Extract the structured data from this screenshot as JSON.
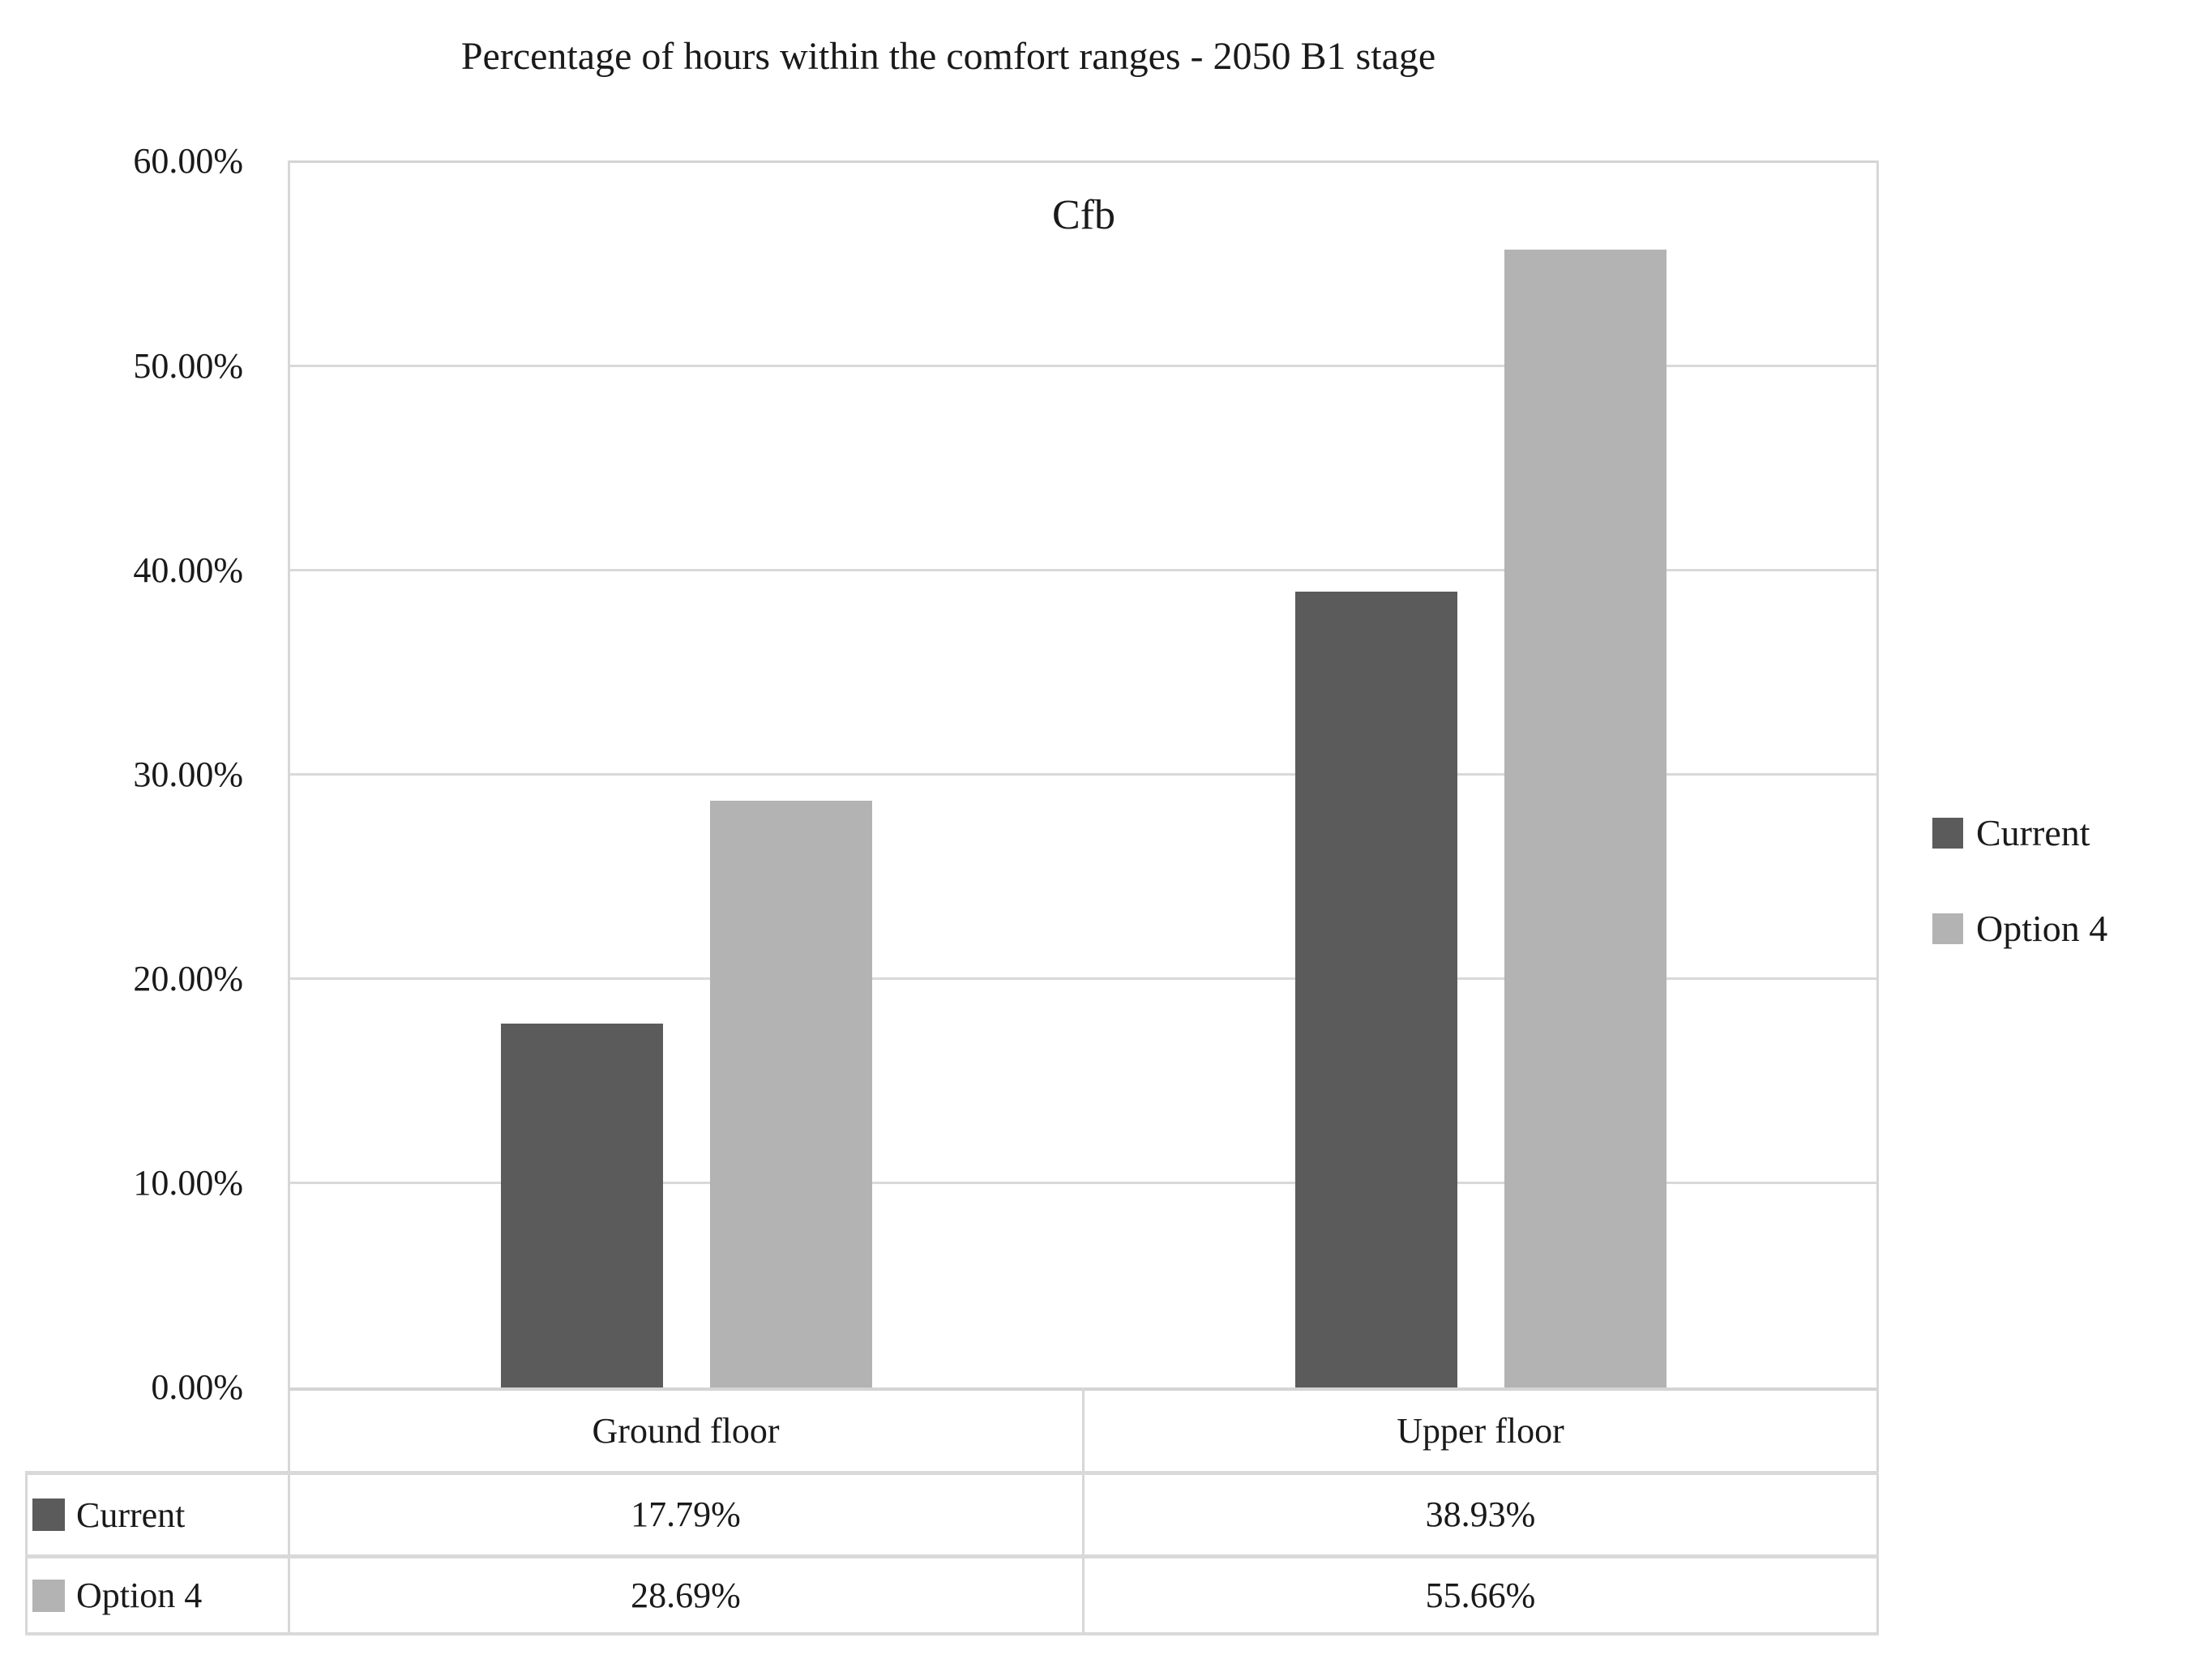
{
  "chart_data": {
    "type": "bar",
    "title": "Percentage of hours within the comfort ranges - 2050 B1 stage",
    "subtitle": "Cfb",
    "categories": [
      "Ground floor",
      "Upper floor"
    ],
    "series": [
      {
        "name": "Current",
        "color": "#5b5b5b",
        "values": [
          17.79,
          38.93
        ],
        "values_fmt": [
          "17.79%",
          "38.93%"
        ]
      },
      {
        "name": "Option 4",
        "color": "#b3b3b3",
        "values": [
          28.69,
          55.66
        ],
        "values_fmt": [
          "28.69%",
          "55.66%"
        ]
      }
    ],
    "y_axis": {
      "min": 0,
      "max": 60,
      "tick_step": 10,
      "ticks": [
        "60.00%",
        "50.00%",
        "40.00%",
        "30.00%",
        "20.00%",
        "10.00%",
        "0.00%"
      ]
    },
    "legend": {
      "position": "right",
      "entries": [
        "Current",
        "Option 4"
      ]
    },
    "grid": true,
    "colors": {
      "gridline": "#d9d9d9",
      "plot_border": "#d4d4d4",
      "text": "#1a1a1a"
    },
    "data_table_shown": true
  }
}
